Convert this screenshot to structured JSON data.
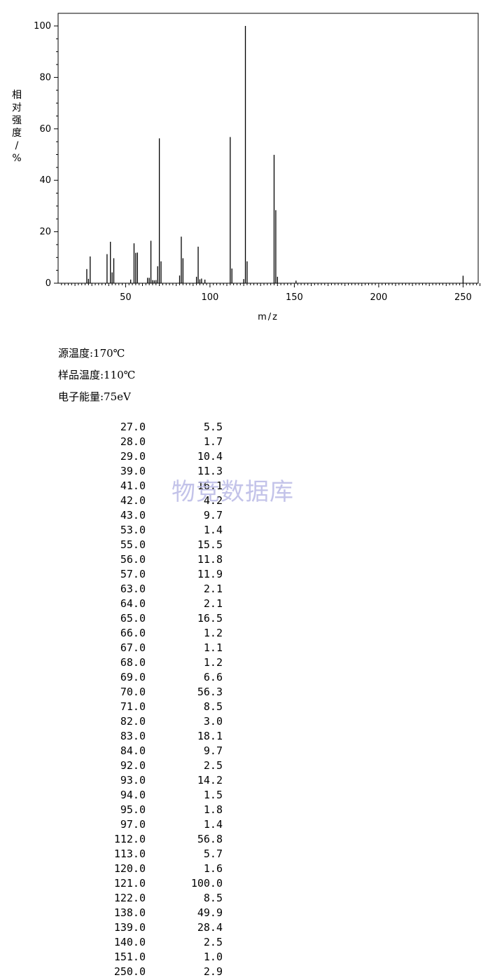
{
  "chart_data": {
    "type": "bar",
    "xlabel": "m/z",
    "ylabel": "相对强度/%",
    "xlim": [
      10,
      262
    ],
    "ylim": [
      0,
      100
    ],
    "x_ticks": [
      50,
      100,
      150,
      200,
      250
    ],
    "y_ticks": [
      0,
      20,
      40,
      60,
      80,
      100
    ],
    "grid": false,
    "peaks": [
      {
        "mz": 27.0,
        "abundance": 5.5
      },
      {
        "mz": 28.0,
        "abundance": 1.7
      },
      {
        "mz": 29.0,
        "abundance": 10.4
      },
      {
        "mz": 39.0,
        "abundance": 11.3
      },
      {
        "mz": 41.0,
        "abundance": 16.1
      },
      {
        "mz": 42.0,
        "abundance": 4.2
      },
      {
        "mz": 43.0,
        "abundance": 9.7
      },
      {
        "mz": 53.0,
        "abundance": 1.4
      },
      {
        "mz": 55.0,
        "abundance": 15.5
      },
      {
        "mz": 56.0,
        "abundance": 11.8
      },
      {
        "mz": 57.0,
        "abundance": 11.9
      },
      {
        "mz": 63.0,
        "abundance": 2.1
      },
      {
        "mz": 64.0,
        "abundance": 2.1
      },
      {
        "mz": 65.0,
        "abundance": 16.5
      },
      {
        "mz": 66.0,
        "abundance": 1.2
      },
      {
        "mz": 67.0,
        "abundance": 1.1
      },
      {
        "mz": 68.0,
        "abundance": 1.2
      },
      {
        "mz": 69.0,
        "abundance": 6.6
      },
      {
        "mz": 70.0,
        "abundance": 56.3
      },
      {
        "mz": 71.0,
        "abundance": 8.5
      },
      {
        "mz": 82.0,
        "abundance": 3.0
      },
      {
        "mz": 83.0,
        "abundance": 18.1
      },
      {
        "mz": 84.0,
        "abundance": 9.7
      },
      {
        "mz": 92.0,
        "abundance": 2.5
      },
      {
        "mz": 93.0,
        "abundance": 14.2
      },
      {
        "mz": 94.0,
        "abundance": 1.5
      },
      {
        "mz": 95.0,
        "abundance": 1.8
      },
      {
        "mz": 97.0,
        "abundance": 1.4
      },
      {
        "mz": 112.0,
        "abundance": 56.8
      },
      {
        "mz": 113.0,
        "abundance": 5.7
      },
      {
        "mz": 120.0,
        "abundance": 1.6
      },
      {
        "mz": 121.0,
        "abundance": 100.0
      },
      {
        "mz": 122.0,
        "abundance": 8.5
      },
      {
        "mz": 138.0,
        "abundance": 49.9
      },
      {
        "mz": 139.0,
        "abundance": 28.4
      },
      {
        "mz": 140.0,
        "abundance": 2.5
      },
      {
        "mz": 151.0,
        "abundance": 1.0
      },
      {
        "mz": 250.0,
        "abundance": 2.9
      }
    ]
  },
  "conditions": [
    "源温度:170℃",
    "样品温度:110℃",
    "电子能量:75eV"
  ],
  "table_rows": [
    {
      "mz": "27.0",
      "abundance": "5.5"
    },
    {
      "mz": "28.0",
      "abundance": "1.7"
    },
    {
      "mz": "29.0",
      "abundance": "10.4"
    },
    {
      "mz": "39.0",
      "abundance": "11.3"
    },
    {
      "mz": "41.0",
      "abundance": "16.1"
    },
    {
      "mz": "42.0",
      "abundance": "4.2"
    },
    {
      "mz": "43.0",
      "abundance": "9.7"
    },
    {
      "mz": "53.0",
      "abundance": "1.4"
    },
    {
      "mz": "55.0",
      "abundance": "15.5"
    },
    {
      "mz": "56.0",
      "abundance": "11.8"
    },
    {
      "mz": "57.0",
      "abundance": "11.9"
    },
    {
      "mz": "63.0",
      "abundance": "2.1"
    },
    {
      "mz": "64.0",
      "abundance": "2.1"
    },
    {
      "mz": "65.0",
      "abundance": "16.5"
    },
    {
      "mz": "66.0",
      "abundance": "1.2"
    },
    {
      "mz": "67.0",
      "abundance": "1.1"
    },
    {
      "mz": "68.0",
      "abundance": "1.2"
    },
    {
      "mz": "69.0",
      "abundance": "6.6"
    },
    {
      "mz": "70.0",
      "abundance": "56.3"
    },
    {
      "mz": "71.0",
      "abundance": "8.5"
    },
    {
      "mz": "82.0",
      "abundance": "3.0"
    },
    {
      "mz": "83.0",
      "abundance": "18.1"
    },
    {
      "mz": "84.0",
      "abundance": "9.7"
    },
    {
      "mz": "92.0",
      "abundance": "2.5"
    },
    {
      "mz": "93.0",
      "abundance": "14.2"
    },
    {
      "mz": "94.0",
      "abundance": "1.5"
    },
    {
      "mz": "95.0",
      "abundance": "1.8"
    },
    {
      "mz": "97.0",
      "abundance": "1.4"
    },
    {
      "mz": "112.0",
      "abundance": "56.8"
    },
    {
      "mz": "113.0",
      "abundance": "5.7"
    },
    {
      "mz": "120.0",
      "abundance": "1.6"
    },
    {
      "mz": "121.0",
      "abundance": "100.0"
    },
    {
      "mz": "122.0",
      "abundance": "8.5"
    },
    {
      "mz": "138.0",
      "abundance": "49.9"
    },
    {
      "mz": "139.0",
      "abundance": "28.4"
    },
    {
      "mz": "140.0",
      "abundance": "2.5"
    },
    {
      "mz": "151.0",
      "abundance": "1.0"
    },
    {
      "mz": "250.0",
      "abundance": "2.9"
    }
  ],
  "watermark": "物竞数据库",
  "colors": {
    "bar": "#000000",
    "axis": "#000000",
    "watermark": "#b9b9e6",
    "background": "#ffffff"
  }
}
